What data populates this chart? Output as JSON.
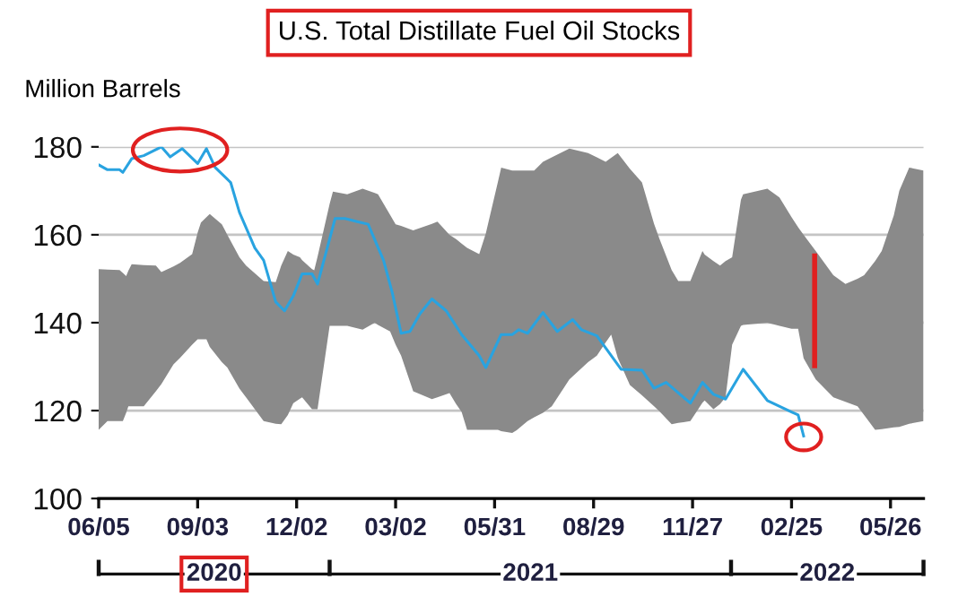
{
  "chart_data": {
    "type": "line",
    "title": "U.S. Total Distillate Fuel Oil Stocks",
    "ylabel": "Million Barrels",
    "annotations": [
      "2020",
      "2021",
      "2022"
    ],
    "xlim": [
      "2020-06-05",
      "2022-06-25"
    ],
    "xticks": [
      {
        "value": "2020-06-05",
        "label": "06/05"
      },
      {
        "value": "2020-09-03",
        "label": "09/03"
      },
      {
        "value": "2020-12-02",
        "label": "12/02"
      },
      {
        "value": "2021-03-02",
        "label": "03/02"
      },
      {
        "value": "2021-05-31",
        "label": "05/31"
      },
      {
        "value": "2021-08-29",
        "label": "08/29"
      },
      {
        "value": "2021-11-27",
        "label": "11/27"
      },
      {
        "value": "2022-02-25",
        "label": "02/25"
      },
      {
        "value": "2022-05-26",
        "label": "05/26"
      }
    ],
    "ylim": [
      100,
      180
    ],
    "yticks": [
      100,
      120,
      140,
      160,
      180
    ],
    "grid": "y",
    "series": [
      {
        "color": "#8a8a8a",
        "values": [
          null,
          null,
          null,
          null,
          null,
          null,
          null,
          null,
          null,
          null,
          null,
          null,
          null,
          null,
          null,
          null,
          null,
          null,
          null,
          null,
          null,
          null,
          null,
          null,
          null,
          null,
          null,
          null,
          null,
          null,
          null,
          null,
          null,
          null,
          null,
          null,
          null,
          null,
          null,
          null,
          null,
          null,
          null,
          null,
          null,
          null,
          null,
          null,
          null,
          null,
          null,
          null,
          null,
          null,
          null,
          null,
          null,
          null,
          null,
          null,
          null,
          null,
          null,
          null,
          null,
          null,
          null,
          null,
          null,
          null,
          null,
          null,
          null,
          null,
          null,
          null,
          null,
          null,
          null,
          null,
          null,
          null,
          null,
          null,
          null,
          null,
          null,
          null,
          null,
          null,
          null,
          null,
          null,
          null
        ],
        "x": [
          "2020-06-05",
          "2020-06-13",
          "2020-06-24",
          "2020-06-27",
          "2020-06-30",
          "2020-07-02",
          "2020-07-05",
          "2020-07-16",
          "2020-07-27",
          "2020-08-01",
          "2020-08-12",
          "2020-08-18",
          "2020-08-29",
          "2020-09-03",
          "2020-09-06",
          "2020-09-11",
          "2020-09-14",
          "2020-09-25",
          "2020-09-30",
          "2020-10-11",
          "2020-10-17",
          "2020-11-02",
          "2020-11-13",
          "2020-11-18",
          "2020-11-24",
          "2020-11-29",
          "2020-12-05",
          "2020-12-07",
          "2020-12-16",
          "2020-12-18",
          "2020-12-21",
          "2021-01-01",
          "2021-01-04",
          "2021-01-17",
          "2021-01-31",
          "2021-02-11",
          "2021-02-14",
          "2021-02-25",
          "2021-03-02",
          "2021-03-07",
          "2021-03-18",
          "2021-04-04",
          "2021-04-09",
          "2021-04-20",
          "2021-04-26",
          "2021-05-01",
          "2021-05-06",
          "2021-05-17",
          "2021-05-23",
          "2021-06-03",
          "2021-06-06",
          "2021-06-16",
          "2021-06-20",
          "2021-06-30",
          "2021-07-06",
          "2021-07-14",
          "2021-07-22",
          "2021-08-07",
          "2021-08-24",
          "2021-09-01",
          "2021-09-09",
          "2021-09-14",
          "2021-09-20",
          "2021-10-01",
          "2021-10-12",
          "2021-10-23",
          "2021-10-28",
          "2021-11-08",
          "2021-11-14",
          "2021-11-25",
          "2021-12-06",
          "2021-12-08",
          "2021-12-16",
          "2021-12-22",
          "2021-12-27",
          "2022-01-02",
          "2022-01-10",
          "2022-01-12",
          "2022-02-03",
          "2022-02-14",
          "2022-02-25",
          "2022-03-03",
          "2022-03-08",
          "2022-03-19",
          "2022-04-04",
          "2022-04-15",
          "2022-04-26",
          "2022-05-02",
          "2022-05-12",
          "2022-05-18",
          "2022-05-29",
          "2022-06-03",
          "2022-06-12",
          "2022-06-25"
        ],
        "upper": [
          152.2,
          152.1,
          152,
          151.3,
          150.6,
          151.8,
          153.3,
          153.1,
          153,
          151.5,
          152.8,
          153.6,
          155.6,
          160.5,
          162.8,
          164,
          164.7,
          162.4,
          160,
          154.9,
          153,
          149.5,
          149.2,
          153,
          156.3,
          155.5,
          154.9,
          154.2,
          152.2,
          151.9,
          155,
          167,
          169.8,
          169.2,
          170.5,
          169.5,
          169.2,
          164.5,
          162.4,
          162,
          161,
          162.5,
          163,
          160,
          159,
          158,
          157,
          155.6,
          160.3,
          172,
          175.3,
          174.6,
          174.6,
          174.6,
          174.6,
          176.6,
          177.6,
          179.6,
          178.6,
          177.6,
          176.6,
          177.5,
          178.6,
          175,
          171.9,
          162.5,
          159,
          152,
          149.5,
          149.5,
          156.3,
          155.5,
          154,
          153,
          154,
          154.9,
          168,
          169.2,
          170.5,
          168.5,
          164,
          161.7,
          160,
          156.3,
          150.8,
          148.8,
          150,
          150.8,
          154,
          156.3,
          164.4,
          170,
          175.3,
          174.6
        ],
        "lower": [
          115.6,
          117.6,
          117.6,
          117.6,
          119.5,
          121,
          121,
          121,
          124.4,
          126,
          130.5,
          132,
          135,
          136.2,
          136.2,
          136.2,
          134.5,
          131,
          129.8,
          125,
          123,
          117.6,
          117,
          116.9,
          119,
          121.7,
          122.7,
          123,
          120.3,
          120.3,
          120.3,
          139.3,
          139.3,
          139.3,
          138.4,
          140,
          139.5,
          138,
          135,
          132.5,
          124.4,
          122.6,
          123,
          124,
          121.5,
          119.7,
          115.6,
          115.6,
          115.6,
          115.6,
          115.3,
          114.9,
          115.5,
          117.6,
          118.5,
          119.5,
          121,
          127.1,
          131,
          132.5,
          135.5,
          137.3,
          132,
          125.8,
          123.5,
          121,
          119.8,
          116.9,
          117.2,
          117.6,
          121.8,
          122.3,
          120.3,
          121.5,
          123,
          135,
          139.3,
          139.5,
          140,
          139.3,
          138.6,
          138.6,
          131.9,
          127.1,
          123,
          122,
          121,
          119,
          115.6,
          115.8,
          116.2,
          116.3,
          117,
          117.6
        ]
      },
      {
        "color": "#29a3e0",
        "x": [
          "2020-06-05",
          "2020-06-13",
          "2020-06-24",
          "2020-06-27",
          "2020-07-05",
          "2020-07-16",
          "2020-08-01",
          "2020-08-09",
          "2020-08-20",
          "2020-09-03",
          "2020-09-11",
          "2020-09-19",
          "2020-10-03",
          "2020-10-11",
          "2020-10-25",
          "2020-11-02",
          "2020-11-13",
          "2020-11-21",
          "2020-11-29",
          "2020-12-07",
          "2020-12-16",
          "2020-12-21",
          "2021-01-06",
          "2021-01-15",
          "2021-01-26",
          "2021-02-05",
          "2021-02-19",
          "2021-02-27",
          "2021-03-07",
          "2021-03-15",
          "2021-03-24",
          "2021-04-04",
          "2021-04-17",
          "2021-05-01",
          "2021-05-17",
          "2021-05-23",
          "2021-06-06",
          "2021-06-16",
          "2021-06-22",
          "2021-06-30",
          "2021-07-14",
          "2021-07-27",
          "2021-08-10",
          "2021-08-18",
          "2021-09-01",
          "2021-09-23",
          "2021-10-12",
          "2021-10-23",
          "2021-11-03",
          "2021-11-25",
          "2021-12-06",
          "2021-12-16",
          "2021-12-27",
          "2022-01-12",
          "2022-02-03",
          "2022-02-25",
          "2022-03-03",
          "2022-03-08"
        ],
        "values": [
          175.9,
          174.8,
          174.8,
          174.2,
          177.3,
          178,
          180,
          177.7,
          179.6,
          176.2,
          179.6,
          175.3,
          171.9,
          165.1,
          157,
          154.2,
          144.7,
          142.7,
          146.1,
          151.1,
          151.1,
          148.8,
          163.7,
          163.7,
          163,
          162.4,
          154.2,
          146.8,
          137.6,
          138,
          142,
          145.4,
          142.7,
          137.3,
          132.5,
          129.8,
          137.3,
          137.3,
          138.4,
          137.6,
          142.3,
          138,
          140.7,
          138.4,
          137,
          129.4,
          129.2,
          125.1,
          126.4,
          121.7,
          126.4,
          123.7,
          122.6,
          129.4,
          122.3,
          119.7,
          119,
          114.2
        ]
      }
    ]
  }
}
